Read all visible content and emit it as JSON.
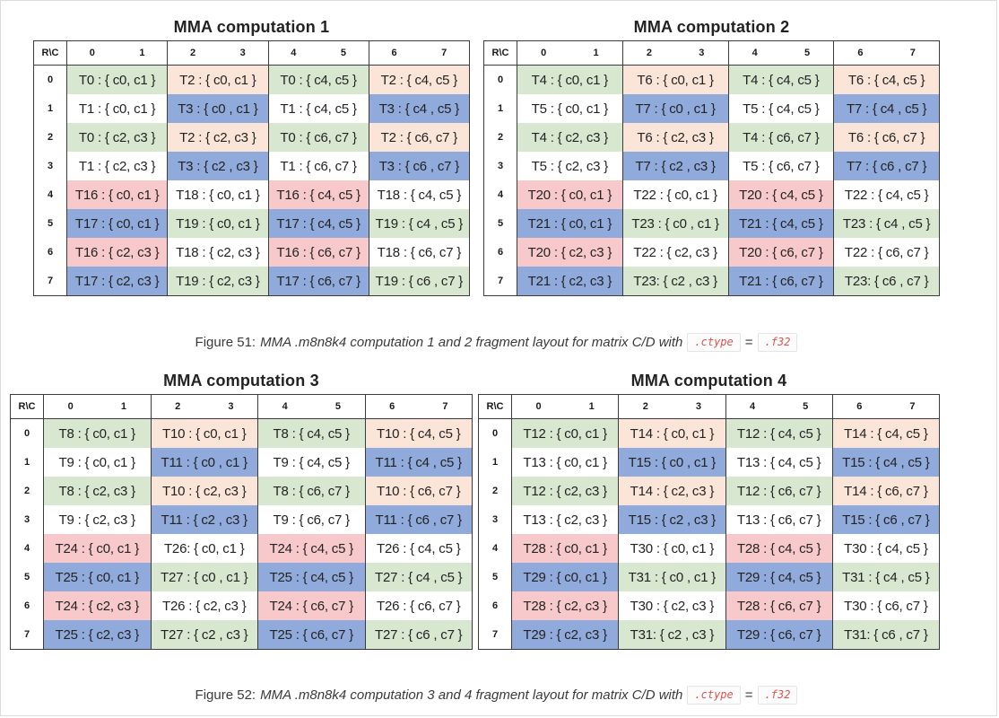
{
  "palette": {
    "green": "#d8e7d0",
    "peach": "#fbe5d8",
    "blue": "#8faadb",
    "pink": "#f8c9ca",
    "white": "#ffffff",
    "table_border": "#3b3b3b",
    "code_text": "#d9534f"
  },
  "tables": [
    {
      "title": "MMA computation 1",
      "corner_label": "R\\C",
      "col_headers": [
        "0",
        "1",
        "2",
        "3",
        "4",
        "5",
        "6",
        "7"
      ],
      "row_labels": [
        "0",
        "1",
        "2",
        "3",
        "4",
        "5",
        "6",
        "7"
      ],
      "rows": [
        [
          {
            "text": "T0 : { c0, c1 }",
            "bg": "green"
          },
          {
            "text": "T2 : { c0, c1 }",
            "bg": "peach"
          },
          {
            "text": "T0 : { c4, c5 }",
            "bg": "green"
          },
          {
            "text": "T2 : { c4, c5 }",
            "bg": "peach"
          }
        ],
        [
          {
            "text": "T1 : { c0, c1 }",
            "bg": "white"
          },
          {
            "text": "T3 : { c0 , c1 }",
            "bg": "blue"
          },
          {
            "text": "T1 : { c4, c5 }",
            "bg": "white"
          },
          {
            "text": "T3 : { c4 , c5 }",
            "bg": "blue"
          }
        ],
        [
          {
            "text": "T0 : { c2, c3 }",
            "bg": "green"
          },
          {
            "text": "T2 : { c2, c3 }",
            "bg": "peach"
          },
          {
            "text": "T0 : { c6, c7 }",
            "bg": "green"
          },
          {
            "text": "T2 : { c6, c7 }",
            "bg": "peach"
          }
        ],
        [
          {
            "text": "T1 : { c2, c3 }",
            "bg": "white"
          },
          {
            "text": "T3 : { c2 , c3 }",
            "bg": "blue"
          },
          {
            "text": "T1 : { c6, c7 }",
            "bg": "white"
          },
          {
            "text": "T3 : { c6 , c7 }",
            "bg": "blue"
          }
        ],
        [
          {
            "text": "T16 : { c0, c1 }",
            "bg": "pink"
          },
          {
            "text": "T18 : { c0, c1 }",
            "bg": "white"
          },
          {
            "text": "T16 : { c4, c5 }",
            "bg": "pink"
          },
          {
            "text": "T18 : { c4, c5 }",
            "bg": "white"
          }
        ],
        [
          {
            "text": "T17 : { c0, c1 }",
            "bg": "blue"
          },
          {
            "text": "T19 : { c0, c1 }",
            "bg": "green"
          },
          {
            "text": "T17 : { c4, c5 }",
            "bg": "blue"
          },
          {
            "text": "T19 : { c4 , c5 }",
            "bg": "green"
          }
        ],
        [
          {
            "text": "T16 : { c2, c3 }",
            "bg": "pink"
          },
          {
            "text": "T18 : { c2, c3 }",
            "bg": "white"
          },
          {
            "text": "T16 : { c6, c7 }",
            "bg": "pink"
          },
          {
            "text": "T18 : { c6, c7 }",
            "bg": "white"
          }
        ],
        [
          {
            "text": "T17 : { c2, c3 }",
            "bg": "blue"
          },
          {
            "text": "T19 : { c2, c3 }",
            "bg": "green"
          },
          {
            "text": "T17 : { c6, c7 }",
            "bg": "blue"
          },
          {
            "text": "T19 : { c6 , c7 }",
            "bg": "green"
          }
        ]
      ]
    },
    {
      "title": "MMA computation 2",
      "corner_label": "R\\C",
      "col_headers": [
        "0",
        "1",
        "2",
        "3",
        "4",
        "5",
        "6",
        "7"
      ],
      "row_labels": [
        "0",
        "1",
        "2",
        "3",
        "4",
        "5",
        "6",
        "7"
      ],
      "rows": [
        [
          {
            "text": "T4 : { c0, c1 }",
            "bg": "green"
          },
          {
            "text": "T6 : { c0, c1 }",
            "bg": "peach"
          },
          {
            "text": "T4 : { c4, c5 }",
            "bg": "green"
          },
          {
            "text": "T6 : { c4, c5 }",
            "bg": "peach"
          }
        ],
        [
          {
            "text": "T5 : { c0, c1 }",
            "bg": "white"
          },
          {
            "text": "T7 : { c0 , c1 }",
            "bg": "blue"
          },
          {
            "text": "T5 : { c4, c5 }",
            "bg": "white"
          },
          {
            "text": "T7 : { c4 , c5 }",
            "bg": "blue"
          }
        ],
        [
          {
            "text": "T4 : { c2, c3 }",
            "bg": "green"
          },
          {
            "text": "T6 : { c2, c3 }",
            "bg": "peach"
          },
          {
            "text": "T4 : { c6, c7 }",
            "bg": "green"
          },
          {
            "text": "T6 : { c6, c7 }",
            "bg": "peach"
          }
        ],
        [
          {
            "text": "T5 : { c2, c3 }",
            "bg": "white"
          },
          {
            "text": "T7 : { c2 , c3 }",
            "bg": "blue"
          },
          {
            "text": "T5 : { c6, c7 }",
            "bg": "white"
          },
          {
            "text": "T7 : { c6 , c7 }",
            "bg": "blue"
          }
        ],
        [
          {
            "text": "T20 : { c0, c1 }",
            "bg": "pink"
          },
          {
            "text": "T22 : { c0, c1 }",
            "bg": "white"
          },
          {
            "text": "T20 : { c4, c5 }",
            "bg": "pink"
          },
          {
            "text": "T22 : { c4, c5 }",
            "bg": "white"
          }
        ],
        [
          {
            "text": "T21 : { c0, c1 }",
            "bg": "blue"
          },
          {
            "text": "T23 : { c0 , c1 }",
            "bg": "green"
          },
          {
            "text": "T21 : { c4, c5 }",
            "bg": "blue"
          },
          {
            "text": "T23 : { c4 , c5 }",
            "bg": "green"
          }
        ],
        [
          {
            "text": "T20 : { c2, c3 }",
            "bg": "pink"
          },
          {
            "text": "T22 : { c2, c3 }",
            "bg": "white"
          },
          {
            "text": "T20 : { c6, c7 }",
            "bg": "pink"
          },
          {
            "text": "T22 : { c6, c7 }",
            "bg": "white"
          }
        ],
        [
          {
            "text": "T21 : { c2, c3 }",
            "bg": "blue"
          },
          {
            "text": "T23: { c2 , c3 }",
            "bg": "green"
          },
          {
            "text": "T21 : { c6, c7 }",
            "bg": "blue"
          },
          {
            "text": "T23: { c6 , c7 }",
            "bg": "green"
          }
        ]
      ]
    },
    {
      "title": "MMA computation 3",
      "corner_label": "R\\C",
      "col_headers": [
        "0",
        "1",
        "2",
        "3",
        "4",
        "5",
        "6",
        "7"
      ],
      "row_labels": [
        "0",
        "1",
        "2",
        "3",
        "4",
        "5",
        "6",
        "7"
      ],
      "rows": [
        [
          {
            "text": "T8 : { c0, c1 }",
            "bg": "green"
          },
          {
            "text": "T10 : { c0, c1 }",
            "bg": "peach"
          },
          {
            "text": "T8 : { c4, c5 }",
            "bg": "green"
          },
          {
            "text": "T10 : { c4, c5 }",
            "bg": "peach"
          }
        ],
        [
          {
            "text": "T9 : { c0, c1 }",
            "bg": "white"
          },
          {
            "text": "T11 : { c0 , c1 }",
            "bg": "blue"
          },
          {
            "text": "T9 : { c4, c5 }",
            "bg": "white"
          },
          {
            "text": "T11 : { c4 , c5 }",
            "bg": "blue"
          }
        ],
        [
          {
            "text": "T8 : { c2, c3 }",
            "bg": "green"
          },
          {
            "text": "T10 : { c2, c3 }",
            "bg": "peach"
          },
          {
            "text": "T8 : { c6, c7 }",
            "bg": "green"
          },
          {
            "text": "T10 : { c6, c7 }",
            "bg": "peach"
          }
        ],
        [
          {
            "text": "T9 : { c2, c3 }",
            "bg": "white"
          },
          {
            "text": "T11 : { c2 , c3 }",
            "bg": "blue"
          },
          {
            "text": "T9 : { c6, c7 }",
            "bg": "white"
          },
          {
            "text": "T11 : { c6 , c7 }",
            "bg": "blue"
          }
        ],
        [
          {
            "text": "T24 : { c0, c1 }",
            "bg": "pink"
          },
          {
            "text": "T26: { c0, c1 }",
            "bg": "white"
          },
          {
            "text": "T24 : { c4, c5 }",
            "bg": "pink"
          },
          {
            "text": "T26 : { c4, c5 }",
            "bg": "white"
          }
        ],
        [
          {
            "text": "T25 : { c0, c1 }",
            "bg": "blue"
          },
          {
            "text": "T27 : { c0 , c1 }",
            "bg": "green"
          },
          {
            "text": "T25 : { c4, c5 }",
            "bg": "blue"
          },
          {
            "text": "T27 : { c4 , c5 }",
            "bg": "green"
          }
        ],
        [
          {
            "text": "T24 : { c2, c3 }",
            "bg": "pink"
          },
          {
            "text": "T26 : { c2, c3 }",
            "bg": "white"
          },
          {
            "text": "T24 : { c6, c7 }",
            "bg": "pink"
          },
          {
            "text": "T26 : { c6, c7 }",
            "bg": "white"
          }
        ],
        [
          {
            "text": "T25 : { c2, c3 }",
            "bg": "blue"
          },
          {
            "text": "T27 : { c2 , c3 }",
            "bg": "green"
          },
          {
            "text": "T25 : { c6, c7 }",
            "bg": "blue"
          },
          {
            "text": "T27 : { c6 , c7 }",
            "bg": "green"
          }
        ]
      ]
    },
    {
      "title": "MMA computation 4",
      "corner_label": "R\\C",
      "col_headers": [
        "0",
        "1",
        "2",
        "3",
        "4",
        "5",
        "6",
        "7"
      ],
      "row_labels": [
        "0",
        "1",
        "2",
        "3",
        "4",
        "5",
        "6",
        "7"
      ],
      "rows": [
        [
          {
            "text": "T12 : { c0, c1 }",
            "bg": "green"
          },
          {
            "text": "T14 : { c0, c1 }",
            "bg": "peach"
          },
          {
            "text": "T12 : { c4, c5 }",
            "bg": "green"
          },
          {
            "text": "T14 : { c4, c5 }",
            "bg": "peach"
          }
        ],
        [
          {
            "text": "T13 : { c0, c1 }",
            "bg": "white"
          },
          {
            "text": "T15 : { c0 , c1 }",
            "bg": "blue"
          },
          {
            "text": "T13 : { c4, c5 }",
            "bg": "white"
          },
          {
            "text": "T15 : { c4 , c5 }",
            "bg": "blue"
          }
        ],
        [
          {
            "text": "T12 : { c2, c3 }",
            "bg": "green"
          },
          {
            "text": "T14 : { c2, c3 }",
            "bg": "peach"
          },
          {
            "text": "T12 : { c6, c7 }",
            "bg": "green"
          },
          {
            "text": "T14 : { c6, c7 }",
            "bg": "peach"
          }
        ],
        [
          {
            "text": "T13 : { c2, c3 }",
            "bg": "white"
          },
          {
            "text": "T15 : { c2 , c3 }",
            "bg": "blue"
          },
          {
            "text": "T13 : { c6, c7 }",
            "bg": "white"
          },
          {
            "text": "T15 : { c6 , c7 }",
            "bg": "blue"
          }
        ],
        [
          {
            "text": "T28 : { c0, c1 }",
            "bg": "pink"
          },
          {
            "text": "T30 : { c0, c1 }",
            "bg": "white"
          },
          {
            "text": "T28 : { c4, c5 }",
            "bg": "pink"
          },
          {
            "text": "T30 : { c4, c5 }",
            "bg": "white"
          }
        ],
        [
          {
            "text": "T29 : { c0, c1 }",
            "bg": "blue"
          },
          {
            "text": "T31 : { c0 , c1 }",
            "bg": "green"
          },
          {
            "text": "T29 : { c4, c5 }",
            "bg": "blue"
          },
          {
            "text": "T31 : { c4 , c5 }",
            "bg": "green"
          }
        ],
        [
          {
            "text": "T28 : { c2, c3 }",
            "bg": "pink"
          },
          {
            "text": "T30 : { c2, c3 }",
            "bg": "white"
          },
          {
            "text": "T28 : { c6, c7 }",
            "bg": "pink"
          },
          {
            "text": "T30 : { c6, c7 }",
            "bg": "white"
          }
        ],
        [
          {
            "text": "T29 : { c2, c3 }",
            "bg": "blue"
          },
          {
            "text": "T31: { c2 , c3 }",
            "bg": "green"
          },
          {
            "text": "T29 : { c6, c7 }",
            "bg": "blue"
          },
          {
            "text": "T31: { c6 , c7 }",
            "bg": "green"
          }
        ]
      ]
    }
  ],
  "captions": [
    {
      "prefix": "Figure 51:",
      "body": "MMA .m8n8k4 computation 1 and 2 fragment layout for matrix C/D with",
      "code1": ".ctype",
      "eq": "=",
      "code2": ".f32"
    },
    {
      "prefix": "Figure 52:",
      "body": "MMA .m8n8k4 computation 3 and 4 fragment layout for matrix C/D with",
      "code1": ".ctype",
      "eq": "=",
      "code2": ".f32"
    }
  ]
}
